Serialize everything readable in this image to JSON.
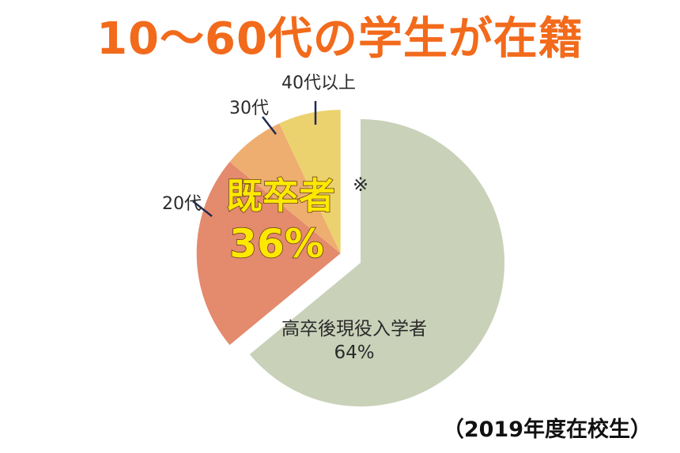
{
  "title": "10〜60代の学生が在籍",
  "footnote": "（2019年度在校生）",
  "colors": {
    "title": "#f26a1b",
    "main_slice": "#c9d1b9",
    "graduates_20s": "#e48a6d",
    "graduates_30s": "#eeae70",
    "graduates_40s": "#ecd26e",
    "highlight_text": "#ffe800",
    "leader_line": "#1f2a55"
  },
  "chart_data": {
    "type": "pie",
    "title": "10〜60代の学生が在籍",
    "slices": [
      {
        "label": "高卒後現役入学者",
        "value": 64,
        "value_label": "64%"
      },
      {
        "label": "20代",
        "value": 22
      },
      {
        "label": "30代",
        "value": 7
      },
      {
        "label": "40代以上",
        "value": 7
      }
    ],
    "group": {
      "label": "既卒者",
      "mark": "※",
      "value": 36,
      "value_label": "36%",
      "members": [
        "20代",
        "30代",
        "40代以上"
      ],
      "exploded": true
    }
  }
}
